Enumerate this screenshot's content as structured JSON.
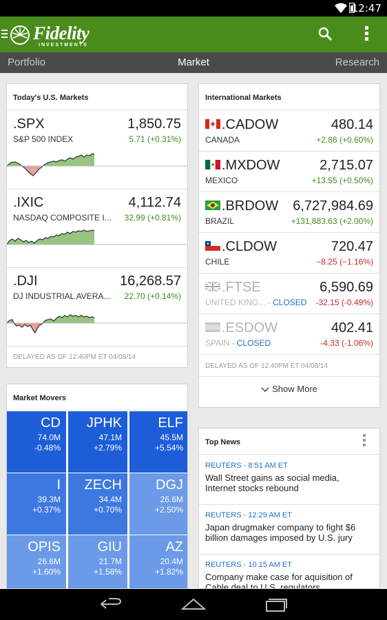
{
  "status": {
    "time": "12:47"
  },
  "app": {
    "logo": "Fidelity",
    "logo_sub": "INVESTMENTS"
  },
  "tabs": [
    "Portfolio",
    "Market",
    "Research"
  ],
  "us_markets": {
    "title": "Today's U.S. Markets",
    "rows": [
      {
        "symbol": ".SPX",
        "name": "S&P 500 INDEX",
        "price": "1,850.75",
        "change": "5.71 (+0.31%)"
      },
      {
        "symbol": ".IXIC",
        "name": "NASDAQ COMPOSITE I...",
        "price": "4,112.74",
        "change": "32.99 (+0.81%)"
      },
      {
        "symbol": ".DJI",
        "name": "DJ INDUSTRIAL AVERA...",
        "price": "16,268.57",
        "change": "22.70 (+0.14%)"
      }
    ],
    "delayed": "DELAYED AS OF 12:40PM ET 04/08/14"
  },
  "intl_markets": {
    "title": "International Markets",
    "rows": [
      {
        "symbol": ".CADOW",
        "name": "CANADA",
        "status": "",
        "price": "480.14",
        "change": "+2.86 (+0.60%)",
        "direction": "up",
        "flag": "canada-flag-icon"
      },
      {
        "symbol": ".MXDOW",
        "name": "MEXICO",
        "status": "",
        "price": "2,715.07",
        "change": "+13.55 (+0.50%)",
        "direction": "up",
        "flag": "mexico-flag-icon"
      },
      {
        "symbol": ".BRDOW",
        "name": "BRAZIL",
        "status": "",
        "price": "6,727,984.69",
        "change": "+131,883.63 (+2.00%)",
        "direction": "up",
        "flag": "brazil-flag-icon"
      },
      {
        "symbol": ".CLDOW",
        "name": "CHILE",
        "status": "",
        "price": "720.47",
        "change": "−8.25 (−1.16%)",
        "direction": "down",
        "flag": "chile-flag-icon"
      },
      {
        "symbol": ".FTSE",
        "name": "UNITED KING...",
        "status": "CLOSED",
        "price": "6,590.69",
        "change": "-32.15 (-0.49%)",
        "direction": "down",
        "flag": "uk-flag-icon"
      },
      {
        "symbol": ".ESDOW",
        "name": "SPAIN",
        "status": "CLOSED",
        "price": "402.41",
        "change": "-4.33 (-1.06%)",
        "direction": "down",
        "flag": "spain-flag-icon"
      }
    ],
    "delayed": "DELAYED AS OF 12:40PM ET 04/08/14",
    "show_more": "Show More"
  },
  "movers": {
    "title": "Market Movers",
    "tiles": [
      {
        "symbol": "CD",
        "volume": "74.0M",
        "change": "-0.48%",
        "color": "#1d5ed8"
      },
      {
        "symbol": "JPHK",
        "volume": "47.1M",
        "change": "+2.79%",
        "color": "#1d5ed8"
      },
      {
        "symbol": "ELF",
        "volume": "45.5M",
        "change": "+5.54%",
        "color": "#1d5ed8"
      },
      {
        "symbol": "I",
        "volume": "39.3M",
        "change": "+0.37%",
        "color": "#3c78e0"
      },
      {
        "symbol": "ZECH",
        "volume": "34.4M",
        "change": "+0.70%",
        "color": "#3c78e0"
      },
      {
        "symbol": "DGJ",
        "volume": "26.6M",
        "change": "+2.50%",
        "color": "#6b9ae8"
      },
      {
        "symbol": "OPIS",
        "volume": "26.6M",
        "change": "+1.60%",
        "color": "#6b9ae8"
      },
      {
        "symbol": "GIU",
        "volume": "21.7M",
        "change": "+1.58%",
        "color": "#6b9ae8"
      },
      {
        "symbol": "AZ",
        "volume": "20.4M",
        "change": "+1.82%",
        "color": "#6b9ae8"
      }
    ]
  },
  "news": {
    "title": "Top News",
    "items": [
      {
        "source": "REUTERS - 8:51 AM ET",
        "headline": "Wall Street gains as social media, Internet stocks rebound"
      },
      {
        "source": "REUTERS - 12:29 AM ET",
        "headline": "Japan drugmaker company to fight $6 billion damages imposed by U.S. jury"
      },
      {
        "source": "REUTERS - 10:15 AM ET",
        "headline": "Company make case for aquisition of Cable deal to U.S. regulators"
      }
    ]
  },
  "colors": {
    "brand_green": "#4a8c1c",
    "positive": "#3f8c1b",
    "negative": "#c62828",
    "link": "#1e6fd0"
  }
}
